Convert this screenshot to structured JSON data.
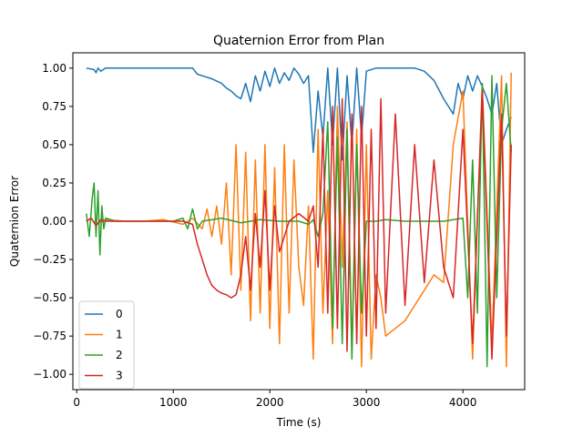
{
  "chart_data": {
    "type": "line",
    "title": "Quaternion Error from Plan",
    "xlabel": "Time (s)",
    "ylabel": "Quaternion Error",
    "xlim": [
      -40,
      4640
    ],
    "ylim": [
      -1.1,
      1.1
    ],
    "x_ticks": [
      0,
      1000,
      2000,
      3000,
      4000
    ],
    "x_tick_labels": [
      "0",
      "1000",
      "2000",
      "3000",
      "4000"
    ],
    "y_ticks": [
      -1.0,
      -0.75,
      -0.5,
      -0.25,
      0.0,
      0.25,
      0.5,
      0.75,
      1.0
    ],
    "y_tick_labels": [
      "−1.00",
      "−0.75",
      "−0.50",
      "−0.25",
      "0.00",
      "0.25",
      "0.50",
      "0.75",
      "1.00"
    ],
    "grid": false,
    "legend_position": "lower-left",
    "series": [
      {
        "name": "0",
        "color": "#1f77b4",
        "x": [
          100,
          180,
          200,
          220,
          250,
          300,
          400,
          600,
          800,
          1000,
          1150,
          1200,
          1250,
          1300,
          1400,
          1500,
          1550,
          1600,
          1650,
          1700,
          1750,
          1800,
          1850,
          1900,
          1950,
          2000,
          2050,
          2100,
          2150,
          2200,
          2250,
          2300,
          2350,
          2400,
          2450,
          2500,
          2550,
          2600,
          2650,
          2700,
          2750,
          2800,
          2850,
          2900,
          2950,
          3000,
          3100,
          3200,
          3300,
          3400,
          3500,
          3600,
          3700,
          3800,
          3850,
          3900,
          3950,
          4000,
          4050,
          4100,
          4150,
          4200,
          4250,
          4300,
          4350,
          4400,
          4450,
          4500
        ],
        "y": [
          1.0,
          0.99,
          0.97,
          1.0,
          0.98,
          1.0,
          1.0,
          1.0,
          1.0,
          1.0,
          1.0,
          1.0,
          0.96,
          0.95,
          0.93,
          0.9,
          0.87,
          0.85,
          0.82,
          0.8,
          0.9,
          0.78,
          0.95,
          0.85,
          0.98,
          0.88,
          1.0,
          0.9,
          0.97,
          0.92,
          1.0,
          0.96,
          0.9,
          0.95,
          0.45,
          0.85,
          0.55,
          1.0,
          0.5,
          1.0,
          0.4,
          0.95,
          0.5,
          1.0,
          0.55,
          0.98,
          1.0,
          1.0,
          1.0,
          1.0,
          1.0,
          0.98,
          0.92,
          0.8,
          0.75,
          0.7,
          0.9,
          0.8,
          0.95,
          0.85,
          0.95,
          0.88,
          0.8,
          0.7,
          0.9,
          0.5,
          0.6,
          0.68
        ]
      },
      {
        "name": "1",
        "color": "#ff7f0e",
        "x": [
          100,
          150,
          200,
          300,
          500,
          700,
          900,
          1100,
          1200,
          1300,
          1350,
          1400,
          1450,
          1500,
          1550,
          1600,
          1650,
          1700,
          1750,
          1800,
          1850,
          1900,
          1950,
          2000,
          2050,
          2100,
          2150,
          2200,
          2250,
          2300,
          2350,
          2400,
          2450,
          2500,
          2550,
          2600,
          2650,
          2700,
          2750,
          2800,
          2850,
          2900,
          2950,
          3000,
          3050,
          3100,
          3150,
          3200,
          3300,
          3400,
          3500,
          3600,
          3700,
          3800,
          3900,
          4000,
          4100,
          4200,
          4300,
          4400,
          4450,
          4500
        ],
        "y": [
          0.0,
          0.02,
          -0.02,
          0.01,
          0.0,
          0.0,
          0.01,
          -0.02,
          0.02,
          -0.05,
          0.08,
          -0.1,
          0.1,
          -0.15,
          0.25,
          -0.35,
          0.5,
          -0.45,
          0.45,
          -0.65,
          0.4,
          -0.6,
          0.5,
          -0.7,
          0.35,
          -0.8,
          0.5,
          -0.6,
          0.4,
          -0.3,
          -0.55,
          0.1,
          -0.9,
          0.6,
          -0.6,
          0.2,
          -0.8,
          0.75,
          -0.3,
          0.65,
          -0.85,
          0.6,
          -0.95,
          0.5,
          -0.9,
          -0.35,
          -0.5,
          -0.75,
          -0.7,
          -0.65,
          -0.55,
          -0.45,
          -0.35,
          -0.4,
          0.5,
          0.85,
          -0.9,
          0.9,
          -0.8,
          0.95,
          -0.95,
          0.97
        ]
      },
      {
        "name": "2",
        "color": "#2ca02c",
        "x": [
          100,
          130,
          160,
          180,
          200,
          220,
          240,
          260,
          280,
          300,
          400,
          600,
          800,
          1000,
          1100,
          1150,
          1200,
          1250,
          1300,
          1500,
          1700,
          1900,
          2100,
          2300,
          2400,
          2450,
          2500,
          2550,
          2600,
          2650,
          2700,
          2750,
          2800,
          2850,
          2900,
          2950,
          3000,
          3100,
          3200,
          3400,
          3600,
          3800,
          4000,
          4050,
          4100,
          4150,
          4200,
          4250,
          4300,
          4350,
          4400,
          4450,
          4500
        ],
        "y": [
          0.05,
          -0.1,
          0.15,
          0.25,
          -0.1,
          0.2,
          -0.22,
          0.1,
          -0.05,
          0.02,
          0.0,
          0.0,
          0.0,
          0.0,
          0.02,
          -0.05,
          0.08,
          -0.05,
          0.0,
          0.02,
          -0.01,
          0.01,
          0.0,
          0.0,
          -0.02,
          0.01,
          -0.1,
          0.05,
          0.65,
          -0.7,
          0.55,
          -0.8,
          0.6,
          -0.9,
          0.5,
          -0.6,
          0.0,
          0.0,
          0.01,
          0.0,
          0.0,
          0.0,
          0.02,
          -0.5,
          0.4,
          -0.6,
          0.9,
          -0.95,
          0.95,
          -0.5,
          0.6,
          0.9,
          0.45
        ]
      },
      {
        "name": "3",
        "color": "#d62728",
        "x": [
          100,
          150,
          200,
          250,
          300,
          500,
          700,
          900,
          1100,
          1200,
          1250,
          1300,
          1350,
          1400,
          1450,
          1500,
          1550,
          1600,
          1650,
          1700,
          1750,
          1800,
          1850,
          1900,
          1950,
          2000,
          2050,
          2100,
          2200,
          2300,
          2400,
          2450,
          2500,
          2550,
          2600,
          2650,
          2700,
          2750,
          2800,
          2850,
          2900,
          2950,
          3000,
          3050,
          3100,
          3150,
          3200,
          3300,
          3400,
          3500,
          3600,
          3700,
          3800,
          3900,
          4000,
          4100,
          4200,
          4300,
          4400,
          4450,
          4500
        ],
        "y": [
          0.0,
          0.02,
          -0.03,
          0.01,
          0.0,
          0.0,
          0.0,
          0.0,
          0.0,
          -0.02,
          -0.15,
          -0.25,
          -0.35,
          -0.42,
          -0.45,
          -0.47,
          -0.48,
          -0.5,
          -0.48,
          -0.35,
          -0.1,
          -0.45,
          0.05,
          -0.3,
          0.2,
          -0.45,
          0.1,
          -0.2,
          0.0,
          0.05,
          0.0,
          0.1,
          -0.3,
          0.6,
          -0.6,
          0.75,
          -0.7,
          0.8,
          -0.85,
          0.7,
          -0.8,
          0.75,
          -0.75,
          0.6,
          -0.7,
          0.8,
          -0.6,
          0.7,
          -0.55,
          0.5,
          -0.4,
          0.4,
          -0.3,
          -0.5,
          0.6,
          -0.8,
          0.85,
          -0.9,
          0.7,
          -0.75,
          0.5
        ]
      }
    ]
  }
}
